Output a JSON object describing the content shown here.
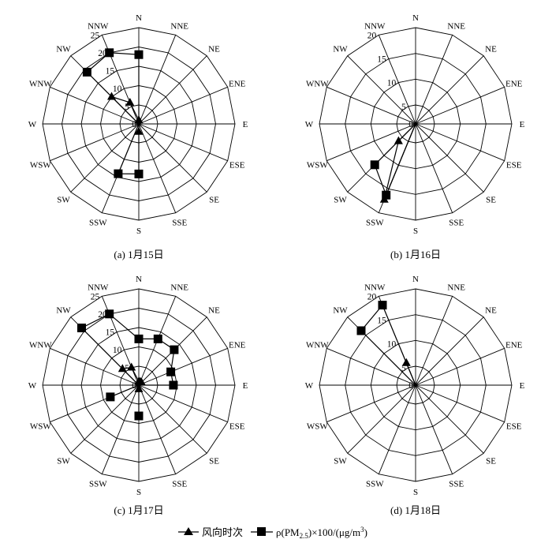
{
  "chart_data": [
    {
      "type": "radar",
      "caption": "(a) 1月15日",
      "directions": [
        "N",
        "NNE",
        "NE",
        "ENE",
        "E",
        "ESE",
        "SE",
        "SSE",
        "S",
        "SSW",
        "SW",
        "WSW",
        "W",
        "WNW",
        "NW",
        "NNW"
      ],
      "ticks": [
        "0",
        "5",
        "10",
        "15",
        "20",
        "25"
      ],
      "rmax": 25,
      "series": [
        {
          "name": "风向时次",
          "marker": "triangle",
          "values": [
            1,
            0,
            0,
            0,
            0,
            0,
            0,
            0,
            2,
            0,
            0,
            0,
            0,
            0,
            10,
            6
          ]
        },
        {
          "name": "ρ(PM2.5)×100/(μg/m³)",
          "marker": "square",
          "values": [
            18,
            0,
            0,
            0,
            0,
            0,
            0,
            0,
            13,
            14,
            0,
            0,
            0,
            0,
            19,
            20
          ]
        }
      ]
    },
    {
      "type": "radar",
      "caption": "(b) 1月16日",
      "directions": [
        "N",
        "NNE",
        "NE",
        "ENE",
        "E",
        "ESE",
        "SE",
        "SSE",
        "S",
        "SSW",
        "SW",
        "WSW",
        "W",
        "WNW",
        "NW",
        "NNW"
      ],
      "ticks": [
        "0",
        "5",
        "10",
        "15",
        "20"
      ],
      "rmax": 20,
      "series": [
        {
          "name": "风向时次",
          "marker": "triangle",
          "values": [
            0,
            0,
            0,
            0,
            0,
            0,
            0,
            0,
            0,
            17,
            5,
            0,
            0,
            0,
            0,
            0
          ]
        },
        {
          "name": "ρ(PM2.5)×100/(μg/m³)",
          "marker": "square",
          "values": [
            0,
            0,
            0,
            0,
            0,
            0,
            0,
            0,
            0,
            16,
            12,
            0,
            0,
            0,
            0,
            0
          ]
        }
      ]
    },
    {
      "type": "radar",
      "caption": "(c) 1月17日",
      "directions": [
        "N",
        "NNE",
        "NE",
        "ENE",
        "E",
        "ESE",
        "SE",
        "SSE",
        "S",
        "SSW",
        "SW",
        "WSW",
        "W",
        "WNW",
        "NW",
        "NNW"
      ],
      "ticks": [
        "0",
        "5",
        "10",
        "15",
        "20",
        "25"
      ],
      "rmax": 25,
      "series": [
        {
          "name": "风向时次",
          "marker": "triangle",
          "values": [
            1,
            1,
            1,
            0,
            0,
            0,
            0,
            0,
            1,
            0,
            0,
            0,
            0,
            0,
            6,
            5
          ]
        },
        {
          "name": "ρ(PM2.5)×100/(μg/m³)",
          "marker": "square",
          "values": [
            12,
            13,
            13,
            9,
            9,
            0,
            0,
            0,
            8,
            0,
            0,
            8,
            0,
            0,
            21,
            20
          ]
        }
      ]
    },
    {
      "type": "radar",
      "caption": "(d) 1月18日",
      "directions": [
        "N",
        "NNE",
        "NE",
        "ENE",
        "E",
        "ESE",
        "SE",
        "SSE",
        "S",
        "SSW",
        "SW",
        "WSW",
        "W",
        "WNW",
        "NW",
        "NNW"
      ],
      "ticks": [
        "0",
        "5",
        "10",
        "15",
        "20"
      ],
      "rmax": 20,
      "series": [
        {
          "name": "风向时次",
          "marker": "triangle",
          "values": [
            0,
            0,
            0,
            0,
            0,
            0,
            0,
            0,
            0,
            0,
            0,
            0,
            0,
            0,
            0,
            5
          ]
        },
        {
          "name": "ρ(PM2.5)×100/(μg/m³)",
          "marker": "square",
          "values": [
            0,
            0,
            0,
            0,
            0,
            0,
            0,
            0,
            0,
            0,
            0,
            0,
            0,
            0,
            16,
            18
          ]
        }
      ]
    }
  ],
  "legend": {
    "triangle_label": "风向时次",
    "square_prefix": "ρ(PM",
    "square_sub": "2.5",
    "square_suffix": ")×100/(μg/m",
    "square_sup": "3",
    "square_end": ")"
  }
}
